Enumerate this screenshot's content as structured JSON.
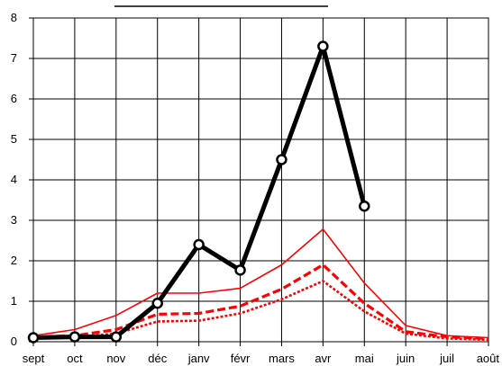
{
  "chart_data": {
    "type": "line",
    "title": "",
    "xlabel": "",
    "ylabel": "",
    "categories": [
      "sept",
      "oct",
      "nov",
      "déc",
      "janv",
      "févr",
      "mars",
      "avr",
      "mai",
      "juin",
      "juil",
      "août"
    ],
    "ylim": [
      0,
      8
    ],
    "yticks": [
      0,
      1,
      2,
      3,
      4,
      5,
      6,
      7,
      8
    ],
    "grid": true,
    "legend": "none",
    "series": [
      {
        "values": [
          0.1,
          0.12,
          0.12,
          0.95,
          2.4,
          1.77,
          4.5,
          7.3,
          3.35,
          null,
          null,
          null
        ],
        "color": "#000000",
        "style": "thick-solid-markers"
      },
      {
        "values": [
          0.15,
          0.3,
          0.65,
          1.2,
          1.2,
          1.32,
          1.9,
          2.78,
          1.45,
          0.4,
          0.15,
          0.1
        ],
        "color": "#ff0000",
        "style": "thin-solid"
      },
      {
        "values": [
          0.12,
          0.15,
          0.3,
          0.68,
          0.7,
          0.88,
          1.3,
          1.9,
          0.95,
          0.25,
          0.12,
          0.08
        ],
        "color": "#ff0000",
        "style": "thick-dashed"
      },
      {
        "values": [
          0.1,
          0.12,
          0.2,
          0.5,
          0.52,
          0.7,
          1.05,
          1.5,
          0.75,
          0.2,
          0.08,
          0.05
        ],
        "color": "#ff0000",
        "style": "dotted"
      }
    ]
  }
}
